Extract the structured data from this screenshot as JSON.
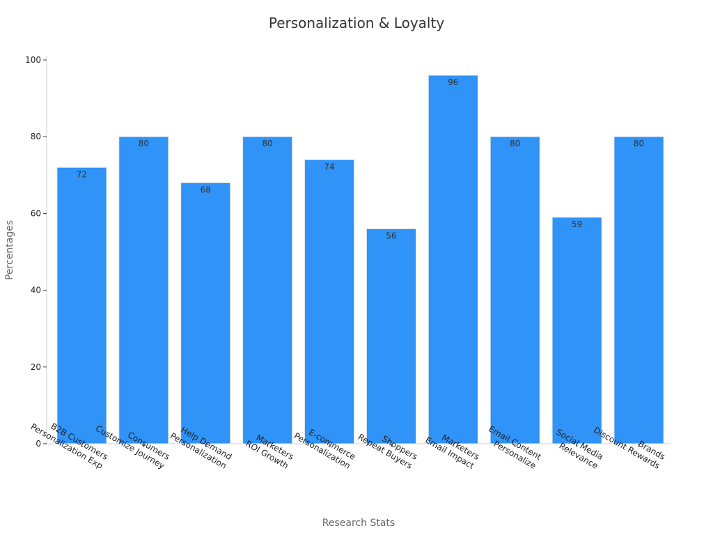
{
  "chart_data": {
    "type": "bar",
    "title": "Personalization & Loyalty",
    "xlabel": "Research Stats",
    "ylabel": "Percentages",
    "categories": [
      [
        "B2B Customers",
        "Personalization Exp"
      ],
      [
        "Consumers",
        "Customize Journey"
      ],
      [
        "Help Demand",
        "Personalization"
      ],
      [
        "Marketers",
        "ROI Growth"
      ],
      [
        "E-commerce",
        "Personalization"
      ],
      [
        "Shoppers",
        "Repeat Buyers"
      ],
      [
        "Marketers",
        "Email Impact"
      ],
      [
        "Email Content",
        "Personalize"
      ],
      [
        "Social Media",
        "Relevance"
      ],
      [
        "Brands",
        "Discount Rewards"
      ]
    ],
    "values": [
      72,
      80,
      68,
      80,
      74,
      56,
      96,
      80,
      59,
      80
    ],
    "ylim": [
      0,
      100
    ],
    "yticks": [
      "0",
      "20",
      "40",
      "60",
      "80",
      "100"
    ],
    "grid": false,
    "legend": "none",
    "bar_color": "#2f93f7",
    "bar_edge_color": "#e0e8f0"
  }
}
